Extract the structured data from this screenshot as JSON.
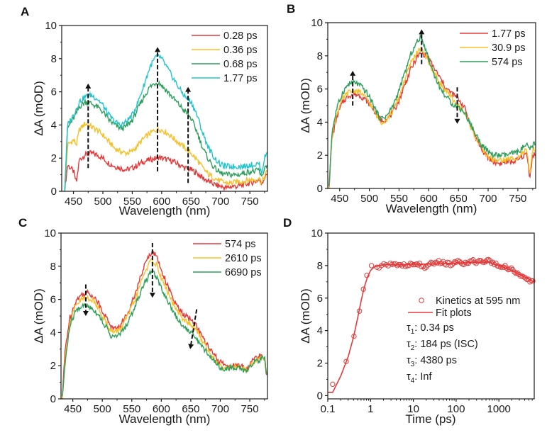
{
  "figure": {
    "colors": {
      "red": "#e23a3a",
      "yellow": "#f5c02a",
      "green": "#2e9e5b",
      "cyan": "#22c4cc",
      "axis": "#1a1a1a",
      "arrow": "#111111"
    }
  },
  "chart_data": [
    {
      "id": "A",
      "panel_label": "A",
      "type": "line",
      "title": "",
      "xlabel": "Wavelength (nm)",
      "ylabel": "ΔA (mOD)",
      "xlim": [
        430,
        780
      ],
      "ylim": [
        0,
        10
      ],
      "xticks": [
        450,
        500,
        550,
        600,
        650,
        700,
        750
      ],
      "yticks": [
        0,
        2,
        4,
        6,
        8,
        10
      ],
      "grid": false,
      "legend_position": "top-right",
      "x": [
        435,
        440,
        450,
        455,
        460,
        470,
        480,
        490,
        500,
        510,
        520,
        530,
        540,
        550,
        560,
        570,
        580,
        590,
        595,
        600,
        610,
        620,
        630,
        640,
        650,
        660,
        670,
        680,
        690,
        700,
        710,
        720,
        730,
        740,
        750,
        760,
        765,
        770,
        775,
        780
      ],
      "series": [
        {
          "name": "0.28 ps",
          "color": "red",
          "values": [
            0.0,
            1.6,
            1.2,
            0.5,
            1.9,
            2.2,
            2.3,
            2.2,
            2.0,
            1.7,
            1.5,
            1.4,
            1.3,
            1.4,
            1.6,
            1.8,
            1.9,
            2.0,
            2.05,
            2.0,
            1.9,
            1.8,
            1.6,
            1.4,
            1.3,
            1.1,
            0.8,
            0.6,
            0.4,
            0.3,
            0.2,
            0.3,
            0.3,
            0.4,
            0.5,
            0.6,
            0.7,
            0.5,
            0.8,
            1.1
          ]
        },
        {
          "name": "0.36 ps",
          "color": "yellow",
          "values": [
            0.0,
            2.8,
            3.1,
            2.8,
            3.7,
            4.1,
            3.9,
            3.7,
            3.4,
            3.0,
            2.6,
            2.4,
            2.3,
            2.4,
            2.8,
            3.2,
            3.5,
            3.7,
            3.75,
            3.7,
            3.5,
            3.2,
            2.9,
            2.6,
            2.3,
            1.9,
            1.4,
            1.0,
            0.8,
            0.6,
            0.5,
            0.5,
            0.6,
            0.6,
            0.7,
            0.7,
            0.8,
            0.5,
            0.9,
            1.2
          ]
        },
        {
          "name": "0.68 ps",
          "color": "green",
          "values": [
            0.0,
            3.8,
            4.4,
            4.7,
            5.1,
            5.4,
            5.3,
            5.1,
            4.8,
            4.3,
            4.0,
            3.8,
            3.9,
            4.3,
            5.0,
            5.7,
            6.3,
            6.55,
            6.55,
            6.4,
            6.0,
            5.6,
            5.2,
            4.8,
            4.4,
            3.6,
            2.6,
            1.9,
            1.4,
            1.1,
            1.0,
            1.0,
            1.0,
            1.1,
            1.2,
            1.2,
            1.3,
            0.8,
            1.4,
            1.7
          ]
        },
        {
          "name": "1.77 ps",
          "color": "cyan",
          "values": [
            0.0,
            4.0,
            4.6,
            5.0,
            5.4,
            5.7,
            5.8,
            5.6,
            5.2,
            4.6,
            4.2,
            4.0,
            4.2,
            4.6,
            5.4,
            6.4,
            7.5,
            8.1,
            8.15,
            8.0,
            7.4,
            6.8,
            6.2,
            5.7,
            5.4,
            4.6,
            3.5,
            2.6,
            2.0,
            1.6,
            1.5,
            1.5,
            1.5,
            1.5,
            1.6,
            1.6,
            1.7,
            1.1,
            2.0,
            2.4
          ]
        }
      ],
      "annotations": [
        {
          "type": "arrow",
          "direction": "up",
          "x": 475,
          "y_from": 1.4,
          "y_to": 6.5
        },
        {
          "type": "arrow",
          "direction": "up",
          "x": 593,
          "y_from": 1.2,
          "y_to": 8.7
        },
        {
          "type": "arrow",
          "direction": "up",
          "x": 645,
          "y_from": 0.5,
          "y_to": 6.3
        }
      ]
    },
    {
      "id": "B",
      "panel_label": "B",
      "type": "line",
      "title": "",
      "xlabel": "Wavelength (nm)",
      "ylabel": "ΔA (mOD)",
      "xlim": [
        430,
        780
      ],
      "ylim": [
        0,
        10
      ],
      "xticks": [
        450,
        500,
        550,
        600,
        650,
        700,
        750
      ],
      "yticks": [
        0,
        2,
        4,
        6,
        8,
        10
      ],
      "grid": false,
      "legend_position": "top-right",
      "x": [
        432,
        437,
        445,
        455,
        465,
        475,
        485,
        495,
        505,
        515,
        520,
        530,
        540,
        550,
        560,
        570,
        580,
        585,
        590,
        595,
        600,
        610,
        620,
        630,
        640,
        650,
        660,
        670,
        680,
        690,
        700,
        710,
        720,
        730,
        740,
        750,
        760,
        765,
        770,
        775,
        780
      ],
      "series": [
        {
          "name": "1.77 ps",
          "color": "red",
          "values": [
            0.0,
            3.0,
            4.3,
            5.2,
            5.6,
            5.7,
            5.6,
            5.3,
            4.9,
            4.3,
            4.1,
            4.2,
            4.6,
            5.3,
            6.3,
            7.2,
            7.9,
            8.1,
            8.15,
            8.0,
            7.8,
            7.2,
            6.6,
            6.0,
            5.7,
            5.4,
            4.9,
            3.9,
            3.0,
            2.3,
            1.8,
            1.6,
            1.5,
            1.6,
            1.6,
            1.7,
            2.0,
            2.1,
            0.7,
            2.0,
            2.1
          ]
        },
        {
          "name": "30.9 ps",
          "color": "yellow",
          "values": [
            0.0,
            3.2,
            4.5,
            5.4,
            5.8,
            5.9,
            5.8,
            5.4,
            4.9,
            4.2,
            4.0,
            4.2,
            4.7,
            5.5,
            6.6,
            7.6,
            8.2,
            8.35,
            8.3,
            8.0,
            7.6,
            6.9,
            6.3,
            5.8,
            5.4,
            5.0,
            4.6,
            3.8,
            3.0,
            2.4,
            1.9,
            1.7,
            1.7,
            1.7,
            1.8,
            1.9,
            2.2,
            2.3,
            0.8,
            2.3,
            2.4
          ]
        },
        {
          "name": "574 ps",
          "color": "green",
          "values": [
            0.0,
            3.4,
            4.8,
            5.8,
            6.3,
            6.4,
            6.2,
            5.8,
            5.2,
            4.4,
            4.2,
            4.4,
            5.0,
            5.9,
            7.0,
            8.1,
            8.8,
            9.1,
            8.9,
            8.4,
            7.8,
            6.8,
            6.0,
            5.5,
            5.1,
            4.9,
            4.6,
            3.9,
            3.2,
            2.6,
            2.2,
            2.0,
            2.0,
            2.0,
            2.1,
            2.2,
            2.5,
            2.6,
            2.3,
            2.6,
            2.8
          ]
        }
      ],
      "annotations": [
        {
          "type": "arrow",
          "direction": "up",
          "x": 472,
          "y_from": 5.0,
          "y_to": 7.1
        },
        {
          "type": "arrow",
          "direction": "up",
          "x": 588,
          "y_from": 7.5,
          "y_to": 9.6
        },
        {
          "type": "arrow",
          "direction": "down",
          "x": 648,
          "y_from": 6.1,
          "y_to": 3.9
        }
      ]
    },
    {
      "id": "C",
      "panel_label": "C",
      "type": "line",
      "title": "",
      "xlabel": "Wavelength (nm)",
      "ylabel": "ΔA (mOD)",
      "xlim": [
        430,
        780
      ],
      "ylim": [
        0,
        10
      ],
      "xticks": [
        450,
        500,
        550,
        600,
        650,
        700,
        750
      ],
      "yticks": [
        0,
        2,
        4,
        6,
        8,
        10
      ],
      "grid": false,
      "legend_position": "top-right",
      "x": [
        432,
        437,
        445,
        455,
        465,
        475,
        485,
        495,
        505,
        515,
        520,
        530,
        540,
        550,
        560,
        570,
        580,
        585,
        590,
        595,
        600,
        610,
        620,
        630,
        640,
        650,
        660,
        670,
        680,
        690,
        700,
        710,
        720,
        730,
        740,
        745,
        750,
        760,
        770,
        775,
        780
      ],
      "series": [
        {
          "name": "574 ps",
          "color": "red",
          "values": [
            0.0,
            3.0,
            4.9,
            5.9,
            6.3,
            6.4,
            6.2,
            5.7,
            5.0,
            4.4,
            4.2,
            4.4,
            5.0,
            5.8,
            6.8,
            7.9,
            8.7,
            8.9,
            8.7,
            8.3,
            7.8,
            6.9,
            6.0,
            5.4,
            5.0,
            4.8,
            4.4,
            3.7,
            3.1,
            2.6,
            2.2,
            2.0,
            2.0,
            2.0,
            1.9,
            1.8,
            2.1,
            2.5,
            2.6,
            2.5,
            1.0
          ]
        },
        {
          "name": "2610 ps",
          "color": "yellow",
          "values": [
            0.0,
            2.5,
            4.6,
            5.6,
            6.0,
            6.1,
            5.9,
            5.4,
            4.7,
            4.1,
            4.0,
            4.2,
            4.8,
            5.5,
            6.4,
            7.5,
            8.2,
            8.35,
            8.2,
            7.8,
            7.3,
            6.5,
            5.7,
            5.1,
            4.7,
            4.5,
            4.1,
            3.5,
            2.9,
            2.4,
            2.0,
            1.9,
            1.9,
            1.9,
            1.8,
            1.7,
            2.0,
            2.3,
            2.5,
            2.4,
            1.0
          ]
        },
        {
          "name": "6690 ps",
          "color": "green",
          "values": [
            0.0,
            2.2,
            4.4,
            5.3,
            5.6,
            5.6,
            5.4,
            5.0,
            4.4,
            3.8,
            3.7,
            3.9,
            4.4,
            5.1,
            6.0,
            6.9,
            7.5,
            7.7,
            7.5,
            7.1,
            6.7,
            6.0,
            5.3,
            4.7,
            4.3,
            4.0,
            3.6,
            3.1,
            2.7,
            2.3,
            1.9,
            1.8,
            1.9,
            1.9,
            1.7,
            1.7,
            1.9,
            2.3,
            2.4,
            2.4,
            1.0
          ]
        }
      ],
      "annotations": [
        {
          "type": "arrow",
          "direction": "down",
          "x": 472,
          "y_from": 6.9,
          "y_to": 5.0
        },
        {
          "type": "arrow",
          "direction": "down",
          "x": 585,
          "y_from": 9.4,
          "y_to": 6.1
        },
        {
          "type": "arrow",
          "direction": "down",
          "x_from": 660,
          "x_to": 649,
          "y_from": 5.4,
          "y_to": 3.0
        }
      ]
    },
    {
      "id": "D",
      "panel_label": "D",
      "type": "scatter",
      "title": "",
      "xlabel": "Time (ps)",
      "ylabel": "ΔA (mOD)",
      "xscale": "log",
      "xlim": [
        0.1,
        6690
      ],
      "ylim": [
        -0.2,
        10
      ],
      "xticks": [
        0.1,
        1,
        10,
        100,
        1000
      ],
      "xtick_labels": [
        "0.1",
        "1",
        "10",
        "100",
        "1000"
      ],
      "yticks": [
        0,
        2,
        4,
        6,
        8,
        10
      ],
      "grid": false,
      "legend_position": "center-right",
      "scatter": {
        "name": "Kinetics at 595 nm",
        "color": "red",
        "x": [
          0.13,
          0.27,
          0.41,
          0.55,
          0.68,
          0.82,
          1.05,
          1.4,
          1.8,
          2.3,
          2.9,
          3.5,
          4.2,
          5.0,
          6.0,
          7.2,
          8.5,
          10,
          12,
          14,
          17,
          20,
          24,
          28,
          33,
          39,
          46,
          54,
          63,
          74,
          87,
          100,
          120,
          140,
          165,
          195,
          230,
          270,
          320,
          380,
          450,
          530,
          620,
          720,
          850,
          1000,
          1200,
          1400,
          1650,
          1950,
          2300,
          2700,
          3200,
          3800,
          4500,
          5300,
          6200
        ],
        "y": [
          0.7,
          2.1,
          3.65,
          5.2,
          6.55,
          7.4,
          8.0,
          7.9,
          8.0,
          8.05,
          8.15,
          8.1,
          8.0,
          8.05,
          8.1,
          8.0,
          8.15,
          8.05,
          8.1,
          8.15,
          7.95,
          7.9,
          8.1,
          8.15,
          8.2,
          8.3,
          8.15,
          8.1,
          8.2,
          8.0,
          8.15,
          8.2,
          8.25,
          8.1,
          8.2,
          8.15,
          8.3,
          8.2,
          8.25,
          8.3,
          8.2,
          8.35,
          8.3,
          8.2,
          8.15,
          7.95,
          7.9,
          8.0,
          7.75,
          7.85,
          7.6,
          7.55,
          7.35,
          7.3,
          7.15,
          7.0,
          7.05
        ]
      },
      "fit": {
        "name": "Fit plots",
        "color": "red",
        "x": [
          0.1,
          0.13,
          0.2,
          0.3,
          0.4,
          0.5,
          0.6,
          0.7,
          0.85,
          1.0,
          1.2,
          1.5,
          2,
          5,
          10,
          30,
          100,
          300,
          600,
          1000,
          2000,
          4000,
          6690
        ],
        "y": [
          0.2,
          0.2,
          1.2,
          2.4,
          3.6,
          4.8,
          5.8,
          6.6,
          7.3,
          7.7,
          7.9,
          8.0,
          8.05,
          8.05,
          8.08,
          8.1,
          8.15,
          8.2,
          8.2,
          8.0,
          7.7,
          7.3,
          7.0
        ]
      },
      "legend_entries": [
        {
          "marker": "circle",
          "label": "Kinetics at 595 nm"
        },
        {
          "marker": "line",
          "label": "Fit plots"
        }
      ],
      "fit_params": [
        {
          "symbol": "τ",
          "sub": "1",
          "text": ": 0.34 ps"
        },
        {
          "symbol": "τ",
          "sub": "2",
          "text": ": 184 ps (ISC)"
        },
        {
          "symbol": "τ",
          "sub": "3",
          "text": ": 4380 ps"
        },
        {
          "symbol": "τ",
          "sub": "4",
          "text": ": Inf"
        }
      ]
    }
  ]
}
